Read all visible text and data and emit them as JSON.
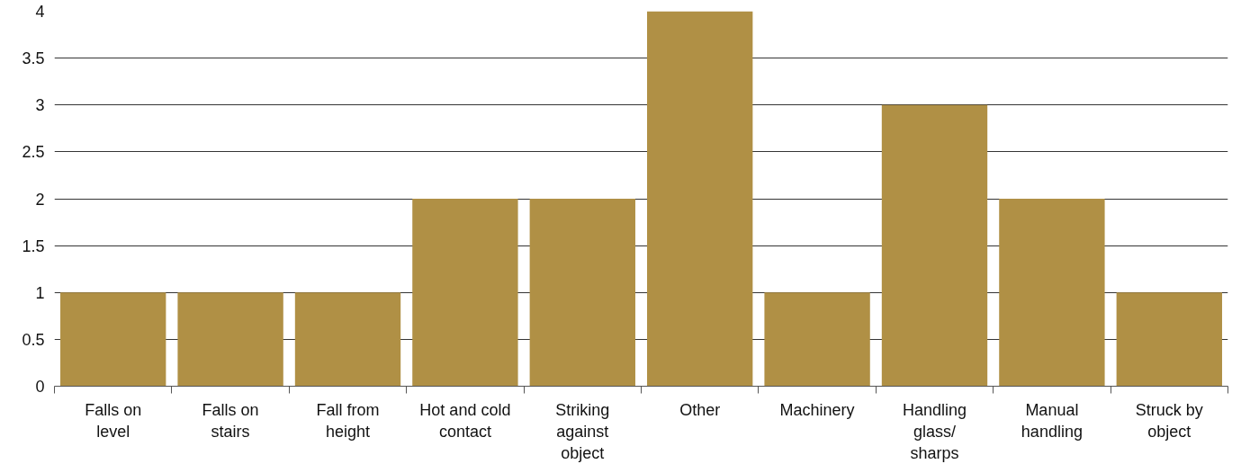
{
  "chart_data": {
    "type": "bar",
    "categories": [
      "Falls on\nlevel",
      "Falls on\nstairs",
      "Fall from\nheight",
      "Hot and cold\ncontact",
      "Striking\nagainst\nobject",
      "Other",
      "Machinery",
      "Handling\nglass/\nsharps",
      "Manual\nhandling",
      "Struck by\nobject"
    ],
    "values": [
      1,
      1,
      1,
      2,
      2,
      4,
      1,
      3,
      2,
      1
    ],
    "color": "#b09045",
    "ylim": [
      0,
      4
    ],
    "yticks": [
      0,
      0.5,
      1,
      1.5,
      2,
      2.5,
      3,
      3.5,
      4
    ],
    "grid": "y"
  }
}
